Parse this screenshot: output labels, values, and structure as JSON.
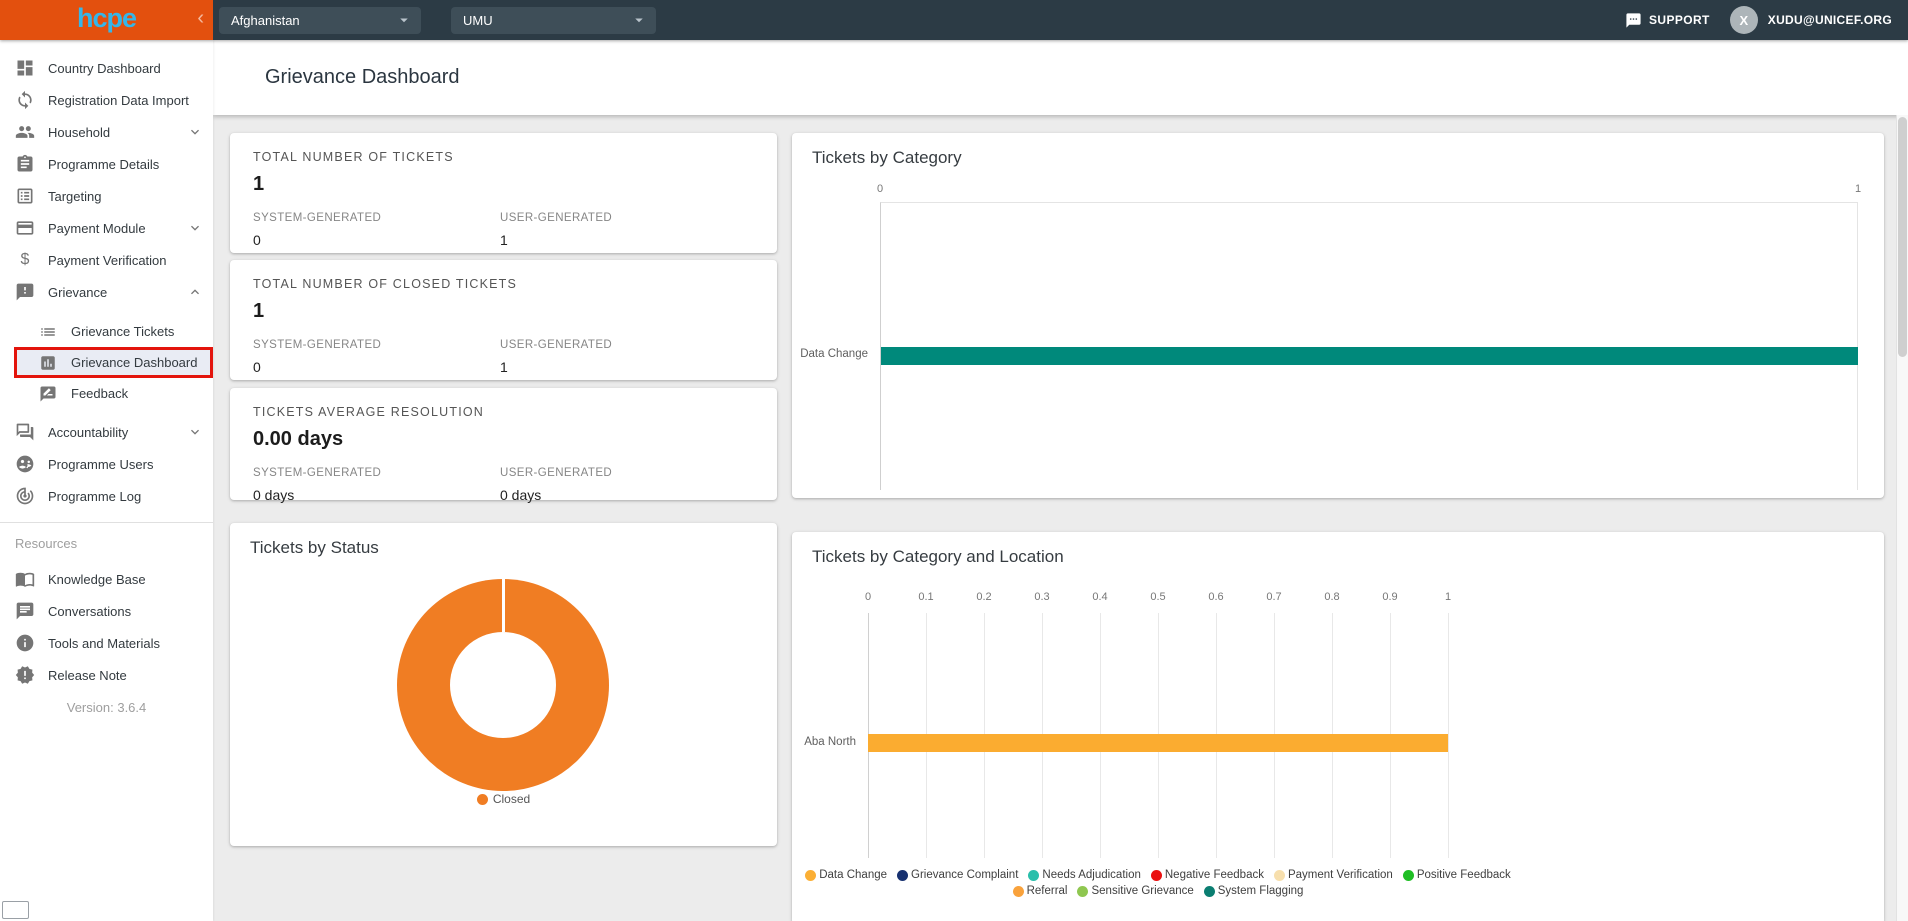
{
  "topbar": {
    "logo": "hcpe",
    "collapse_icon": "‹",
    "business_area_select": "Afghanistan",
    "programme_select": "UMU",
    "support_label": "SUPPORT",
    "avatar_initial": "X",
    "user_email": "XUDU@UNICEF.ORG"
  },
  "sidebar": {
    "selection_highlight_color": "#e3140c",
    "items": [
      {
        "label": "Country Dashboard"
      },
      {
        "label": "Registration Data Import"
      },
      {
        "label": "Household",
        "expandable": true
      },
      {
        "label": "Programme Details"
      },
      {
        "label": "Targeting"
      },
      {
        "label": "Payment Module",
        "expandable": true
      },
      {
        "label": "Payment Verification"
      },
      {
        "label": "Grievance",
        "expandable": true,
        "expanded": true
      },
      {
        "label": "Grievance Tickets",
        "sub": true
      },
      {
        "label": "Grievance Dashboard",
        "sub": true,
        "selected": true
      },
      {
        "label": "Feedback",
        "sub": true
      },
      {
        "label": "Accountability",
        "expandable": true
      },
      {
        "label": "Programme Users"
      },
      {
        "label": "Programme Log"
      }
    ],
    "resources_label": "Resources",
    "resource_items": [
      {
        "label": "Knowledge Base"
      },
      {
        "label": "Conversations"
      },
      {
        "label": "Tools and Materials"
      },
      {
        "label": "Release Note"
      }
    ],
    "version": "Version: 3.6.4"
  },
  "page": {
    "title": "Grievance Dashboard"
  },
  "cards": [
    {
      "label": "TOTAL NUMBER OF TICKETS",
      "value": "1",
      "system_label": "SYSTEM-GENERATED",
      "system_value": "0",
      "user_label": "USER-GENERATED",
      "user_value": "1"
    },
    {
      "label": "TOTAL NUMBER OF CLOSED TICKETS",
      "value": "1",
      "system_label": "SYSTEM-GENERATED",
      "system_value": "0",
      "user_label": "USER-GENERATED",
      "user_value": "1"
    },
    {
      "label": "TICKETS AVERAGE RESOLUTION",
      "value": "0.00 days",
      "system_label": "SYSTEM-GENERATED",
      "system_value": "0 days",
      "user_label": "USER-GENERATED",
      "user_value": "0 days"
    }
  ],
  "chart_data": [
    {
      "type": "pie",
      "subtype": "donut",
      "title": "Tickets by Status",
      "categories": [
        "Closed"
      ],
      "values": [
        1
      ],
      "colors": [
        "#f07d23"
      ],
      "legend_position": "bottom"
    },
    {
      "type": "bar",
      "orientation": "horizontal",
      "title": "Tickets by Category",
      "categories": [
        "Data Change"
      ],
      "values": [
        1
      ],
      "xlim": [
        0,
        1
      ],
      "ticks": [
        "0",
        "1"
      ],
      "bar_color": "#00897b",
      "grid": true,
      "value_axis_position": "top"
    },
    {
      "type": "bar",
      "orientation": "horizontal",
      "stacked": true,
      "title": "Tickets by Category and Location",
      "categories": [
        "Aba North"
      ],
      "series": [
        {
          "name": "Data Change",
          "values": [
            1
          ],
          "color": "#fbac30"
        }
      ],
      "xlim": [
        0,
        1
      ],
      "ticks": [
        "0",
        "0.1",
        "0.2",
        "0.3",
        "0.4",
        "0.5",
        "0.6",
        "0.7",
        "0.8",
        "0.9",
        "1"
      ],
      "grid": true,
      "value_axis_position": "top",
      "legend_position": "bottom",
      "legend": [
        {
          "label": "Data Change",
          "color": "#fbaf35"
        },
        {
          "label": "Grievance Complaint",
          "color": "#173170"
        },
        {
          "label": "Needs Adjudication",
          "color": "#2abfab"
        },
        {
          "label": "Negative Feedback",
          "color": "#ea1010"
        },
        {
          "label": "Payment Verification",
          "color": "#f7dfad"
        },
        {
          "label": "Positive Feedback",
          "color": "#1fbe24"
        },
        {
          "label": "Referral",
          "color": "#f9a23c"
        },
        {
          "label": "Sensitive Grievance",
          "color": "#8fc750"
        },
        {
          "label": "System Flagging",
          "color": "#0b7e71"
        }
      ]
    }
  ]
}
